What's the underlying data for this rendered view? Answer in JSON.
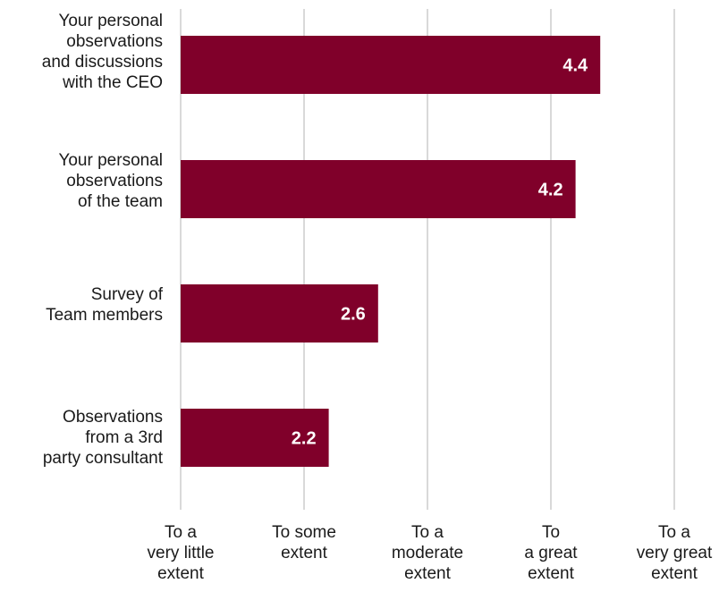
{
  "chart_data": {
    "type": "bar",
    "orientation": "horizontal",
    "categories": [
      "Your personal\nobservations\nand discussions\nwith the CEO",
      "Your personal\nobservations\nof the team",
      "Survey of\nTeam members",
      "Observations\nfrom a 3rd\nparty consultant"
    ],
    "values": [
      4.4,
      4.2,
      2.6,
      2.2
    ],
    "data_labels": [
      "4.4",
      "4.2",
      "2.6",
      "2.2"
    ],
    "xlim": [
      1,
      5
    ],
    "x_ticks": [
      1,
      2,
      3,
      4,
      5
    ],
    "x_tick_labels": [
      "To a\nvery little\nextent",
      "To some\nextent",
      "To a\nmoderate\nextent",
      "To\na great\nextent",
      "To a\nvery great\nextent"
    ],
    "grid": true,
    "bar_color": "#80002a",
    "label_color": "#ffffff",
    "grid_color": "#d9d9d9"
  }
}
